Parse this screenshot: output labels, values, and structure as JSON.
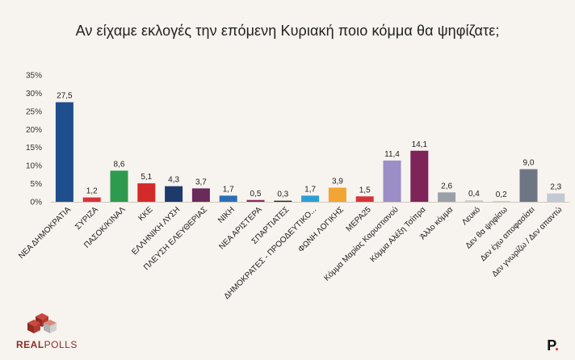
{
  "title": "Αν είχαμε εκλογές την επόμενη Κυριακή ποιο κόμμα θα ψηφίζατε;",
  "logo": {
    "name": "REALPOLLS",
    "part1": "REAL",
    "part2": "POLLS"
  },
  "brand_mark": {
    "letter": "P",
    "dot": "."
  },
  "chart_data": {
    "type": "bar",
    "title": "Αν είχαμε εκλογές την επόμενη Κυριακή ποιο κόμμα θα ψηφίζατε;",
    "xlabel": "",
    "ylabel": "",
    "ylim": [
      0,
      35
    ],
    "yticks": [
      "35%",
      "30%",
      "25%",
      "20%",
      "15%",
      "10%",
      "5%",
      "0%"
    ],
    "ytick_values": [
      35,
      30,
      25,
      20,
      15,
      10,
      5,
      0
    ],
    "grid": false,
    "legend": "none",
    "categories": [
      "ΝΕΑ ΔΗΜΟΚΡΑΤΙΑ",
      "ΣΥΡΙΖΑ",
      "ΠΑΣΟΚ/ΚΙΝΑΛ",
      "ΚΚΕ",
      "ΕΛΛΗΝΙΚΗ ΛΥΣΗ",
      "ΠΛΕΥΣΗ ΕΛΕΥΘΕΡΙΑΣ",
      "ΝΙΚΗ",
      "ΝΕΑ ΑΡΙΣΤΕΡΑ",
      "ΣΠΑΡΤΙΑΤΕΣ",
      "ΔΗΜΟΚΡΑΤΕΣ - ΠΡΟΟΔΕΥΤΙΚΟ...",
      "ΦΩΝΗ ΛΟΓΙΚΗΣ",
      "ΜΕΡΑ25",
      "Κόμμα Μαρίας Καρυστιανού",
      "Κόμμα Αλέξη Τσίπρα",
      "Άλλο κόμμα",
      "Λευκό",
      "Δεν θα ψηφίσω",
      "Δεν έχω αποφασίσει",
      "Δεν γνωρίζω / Δεν απαντώ"
    ],
    "values": [
      27.5,
      1.2,
      8.6,
      5.1,
      4.3,
      3.7,
      1.7,
      0.5,
      0.3,
      1.7,
      3.9,
      1.5,
      11.4,
      14.1,
      2.6,
      0.4,
      0.2,
      9.0,
      2.3
    ],
    "value_labels": [
      "27,5",
      "1,2",
      "8,6",
      "5,1",
      "4,3",
      "3,7",
      "1,7",
      "0,5",
      "0,3",
      "1,7",
      "3,9",
      "1,5",
      "11,4",
      "14,1",
      "2,6",
      "0,4",
      "0,2",
      "9,0",
      "2,3"
    ],
    "colors": [
      "#1f4e8c",
      "#d6343a",
      "#2e9a4e",
      "#d42a2a",
      "#1d3a6b",
      "#6b2a5c",
      "#2a6fb5",
      "#8b2a66",
      "#2a2a2a",
      "#2b9fd4",
      "#f0a534",
      "#d6343a",
      "#9b8dc6",
      "#7e2458",
      "#9aa0a8",
      "#c8cccf",
      "#c8cccf",
      "#6e7585",
      "#c3c9d4"
    ]
  }
}
